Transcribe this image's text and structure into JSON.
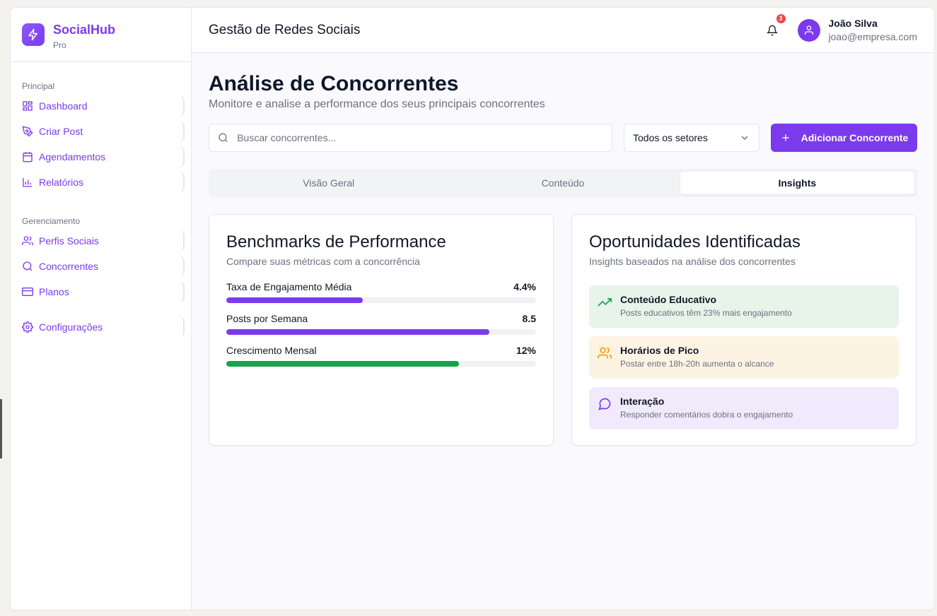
{
  "brand": {
    "name": "SocialHub",
    "plan": "Pro"
  },
  "sidebar": {
    "groups": [
      {
        "label": "Principal",
        "items": [
          {
            "label": "Dashboard",
            "icon": "dashboard-icon"
          },
          {
            "label": "Criar Post",
            "icon": "pen-icon"
          },
          {
            "label": "Agendamentos",
            "icon": "calendar-icon"
          },
          {
            "label": "Relatórios",
            "icon": "bar-chart-icon"
          }
        ]
      },
      {
        "label": "Gerenciamento",
        "items": [
          {
            "label": "Perfis Sociais",
            "icon": "users-icon"
          },
          {
            "label": "Concorrentes",
            "icon": "search-icon"
          },
          {
            "label": "Planos",
            "icon": "credit-card-icon"
          }
        ]
      }
    ],
    "settings": {
      "label": "Configurações",
      "icon": "gear-icon"
    }
  },
  "header": {
    "title": "Gestão de Redes Sociais",
    "notifications_count": "3",
    "user": {
      "name": "João Silva",
      "email": "joao@empresa.com"
    }
  },
  "page": {
    "title": "Análise de Concorrentes",
    "subtitle": "Monitore e analise a performance dos seus principais concorrentes"
  },
  "toolbar": {
    "search_placeholder": "Buscar concorrentes...",
    "sector_select": "Todos os setores",
    "add_label": "Adicionar Concorrente"
  },
  "tabs": [
    {
      "label": "Visão Geral",
      "active": false
    },
    {
      "label": "Conteúdo",
      "active": false
    },
    {
      "label": "Insights",
      "active": true
    }
  ],
  "benchmarks": {
    "title": "Benchmarks de Performance",
    "subtitle": "Compare suas métricas com a concorrência",
    "metrics": [
      {
        "label": "Taxa de Engajamento Média",
        "value": "4.4%",
        "progress": 0.44,
        "color": "#7c3aed"
      },
      {
        "label": "Posts por Semana",
        "value": "8.5",
        "progress": 0.85,
        "color": "#7c3aed"
      },
      {
        "label": "Crescimento Mensal",
        "value": "12%",
        "progress": 0.75,
        "color": "#16a34a"
      }
    ]
  },
  "opportunities": {
    "title": "Oportunidades Identificadas",
    "subtitle": "Insights baseados na análise dos concorrentes",
    "items": [
      {
        "title": "Conteúdo Educativo",
        "desc": "Posts educativos têm 23% mais engajamento",
        "icon": "trending-up-icon",
        "bg": "#e6f4ea",
        "icon_color": "#16a34a"
      },
      {
        "title": "Horários de Pico",
        "desc": "Postar entre 18h-20h aumenta o alcance",
        "icon": "users-icon",
        "bg": "#fdf3e3",
        "icon_color": "#f59e0b"
      },
      {
        "title": "Interação",
        "desc": "Responder comentários dobra o engajamento",
        "icon": "message-circle-icon",
        "bg": "#f1eafc",
        "icon_color": "#7c3aed"
      }
    ]
  },
  "colors": {
    "accent": "#7c3aed",
    "success": "#16a34a",
    "danger": "#ef4444"
  }
}
